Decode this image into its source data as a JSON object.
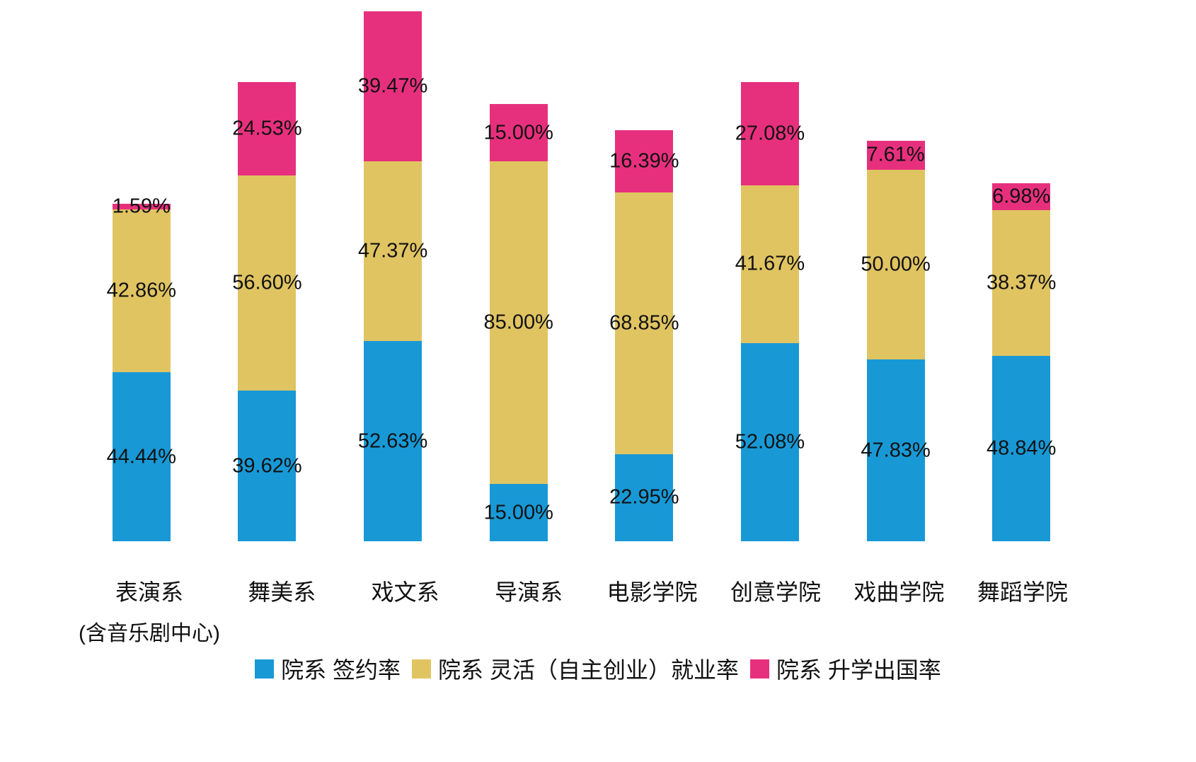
{
  "chart_data": {
    "type": "bar",
    "stacked": true,
    "title": "",
    "xlabel": "",
    "ylabel": "",
    "grid": false,
    "value_axis_visible": false,
    "value_suffix": "%",
    "legend_position": "bottom",
    "categories": [
      {
        "line1": "表演系",
        "line2": "(含音乐剧中心)"
      },
      {
        "line1": "舞美系",
        "line2": ""
      },
      {
        "line1": "戏文系",
        "line2": ""
      },
      {
        "line1": "导演系",
        "line2": ""
      },
      {
        "line1": "电影学院",
        "line2": ""
      },
      {
        "line1": "创意学院",
        "line2": ""
      },
      {
        "line1": "戏曲学院",
        "line2": ""
      },
      {
        "line1": "舞蹈学院",
        "line2": ""
      }
    ],
    "series": [
      {
        "key": "signed",
        "name": "院系 签约率",
        "color": "#1899d6",
        "values": [
          44.44,
          39.62,
          52.63,
          15.0,
          22.95,
          52.08,
          47.83,
          48.84
        ],
        "labels": [
          "44.44%",
          "39.62%",
          "52.63%",
          "15.00%",
          "22.95%",
          "52.08%",
          "47.83%",
          "48.84%"
        ]
      },
      {
        "key": "flexible",
        "name": "院系 灵活（自主创业）就业率",
        "color": "#e0c462",
        "values": [
          42.86,
          56.6,
          47.37,
          85.0,
          68.85,
          41.67,
          50.0,
          38.37
        ],
        "labels": [
          "42.86%",
          "56.60%",
          "47.37%",
          "85.00%",
          "68.85%",
          "41.67%",
          "50.00%",
          "38.37%"
        ]
      },
      {
        "key": "abroad",
        "name": "院系 升学出国率",
        "color": "#e7307d",
        "values": [
          1.59,
          24.53,
          39.47,
          15.0,
          16.39,
          27.08,
          7.61,
          6.98
        ],
        "labels": [
          "1.59%",
          "24.53%",
          "39.47%",
          "15.00%",
          "16.39%",
          "27.08%",
          "7.61%",
          "6.98%"
        ]
      }
    ],
    "text_color": "#111111",
    "background_color": "#ffffff"
  }
}
